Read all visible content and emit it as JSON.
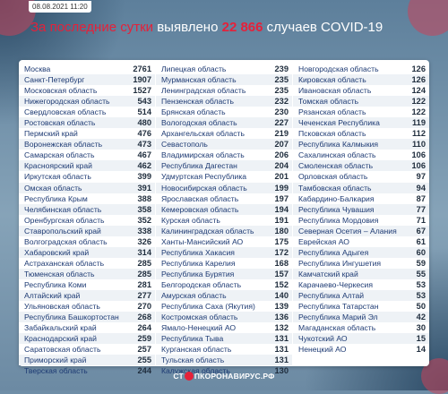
{
  "header": {
    "date": "08.08.2021 11:20",
    "title_part1": "За последние сутки",
    "title_part2": " выявлено ",
    "title_number": "22 866",
    "title_part3": " случаев COVID-19"
  },
  "footer": {
    "text_pre": "СТ",
    "text_post": "ПКОРОНАВИРУС.РФ"
  },
  "columns": [
    [
      {
        "name": "Москва",
        "value": "2761"
      },
      {
        "name": "Санкт-Петербург",
        "value": "1907"
      },
      {
        "name": "Московская область",
        "value": "1527"
      },
      {
        "name": "Нижегородская область",
        "value": "543"
      },
      {
        "name": "Свердловская область",
        "value": "514"
      },
      {
        "name": "Ростовская область",
        "value": "480"
      },
      {
        "name": "Пермский край",
        "value": "476"
      },
      {
        "name": "Воронежская область",
        "value": "473"
      },
      {
        "name": "Самарская область",
        "value": "467"
      },
      {
        "name": "Красноярский край",
        "value": "462"
      },
      {
        "name": "Иркутская область",
        "value": "399"
      },
      {
        "name": "Омская область",
        "value": "391"
      },
      {
        "name": "Республика Крым",
        "value": "388"
      },
      {
        "name": "Челябинская область",
        "value": "358"
      },
      {
        "name": "Оренбургская область",
        "value": "352"
      },
      {
        "name": "Ставропольский край",
        "value": "338"
      },
      {
        "name": "Волгоградская область",
        "value": "326"
      },
      {
        "name": "Хабаровский край",
        "value": "314"
      },
      {
        "name": "Астраханская область",
        "value": "285"
      },
      {
        "name": "Тюменская область",
        "value": "285"
      },
      {
        "name": "Республика Коми",
        "value": "281"
      },
      {
        "name": "Алтайский край",
        "value": "277"
      },
      {
        "name": "Ульяновская область",
        "value": "270"
      },
      {
        "name": "Республика Башкортостан",
        "value": "268"
      },
      {
        "name": "Забайкальский край",
        "value": "264"
      },
      {
        "name": "Краснодарский край",
        "value": "259"
      },
      {
        "name": "Саратовская область",
        "value": "257"
      },
      {
        "name": "Приморский край",
        "value": "255"
      },
      {
        "name": "Тверская область",
        "value": "244"
      }
    ],
    [
      {
        "name": "Липецкая область",
        "value": "239"
      },
      {
        "name": "Мурманская область",
        "value": "235"
      },
      {
        "name": "Ленинградская область",
        "value": "235"
      },
      {
        "name": "Пензенская область",
        "value": "232"
      },
      {
        "name": "Брянская область",
        "value": "230"
      },
      {
        "name": "Вологодская область",
        "value": "227"
      },
      {
        "name": "Архангельская область",
        "value": "219"
      },
      {
        "name": "Севастополь",
        "value": "207"
      },
      {
        "name": "Владимирская область",
        "value": "206"
      },
      {
        "name": "Республика Дагестан",
        "value": "204"
      },
      {
        "name": "Удмуртская Республика",
        "value": "201"
      },
      {
        "name": "Новосибирская область",
        "value": "199"
      },
      {
        "name": "Ярославская область",
        "value": "197"
      },
      {
        "name": "Кемеровская область",
        "value": "194"
      },
      {
        "name": "Курская область",
        "value": "191"
      },
      {
        "name": "Калининградская область",
        "value": "180"
      },
      {
        "name": "Ханты-Мансийский АО",
        "value": "175"
      },
      {
        "name": "Республика Хакасия",
        "value": "172"
      },
      {
        "name": "Республика Карелия",
        "value": "168"
      },
      {
        "name": "Республика Бурятия",
        "value": "157"
      },
      {
        "name": "Белгородская область",
        "value": "152"
      },
      {
        "name": "Амурская область",
        "value": "140"
      },
      {
        "name": "Республика Саха (Якутия)",
        "value": "139"
      },
      {
        "name": "Костромская область",
        "value": "136"
      },
      {
        "name": "Ямало-Ненецкий АО",
        "value": "132"
      },
      {
        "name": "Республика Тыва",
        "value": "131"
      },
      {
        "name": "Курганская область",
        "value": "131"
      },
      {
        "name": "Тульская область",
        "value": "131"
      },
      {
        "name": "Калужская область",
        "value": "130"
      }
    ],
    [
      {
        "name": "Новгородская область",
        "value": "126"
      },
      {
        "name": "Кировская область",
        "value": "126"
      },
      {
        "name": "Ивановская область",
        "value": "124"
      },
      {
        "name": "Томская область",
        "value": "122"
      },
      {
        "name": "Рязанская область",
        "value": "122"
      },
      {
        "name": "Чеченская Республика",
        "value": "119"
      },
      {
        "name": "Псковская область",
        "value": "112"
      },
      {
        "name": "Республика Калмыкия",
        "value": "110"
      },
      {
        "name": "Сахалинская область",
        "value": "106"
      },
      {
        "name": "Смоленская область",
        "value": "106"
      },
      {
        "name": "Орловская область",
        "value": "97"
      },
      {
        "name": "Тамбовская область",
        "value": "94"
      },
      {
        "name": "Кабардино-Балкария",
        "value": "87"
      },
      {
        "name": "Республика Чувашия",
        "value": "77"
      },
      {
        "name": "Республика Мордовия",
        "value": "71"
      },
      {
        "name": "Северная Осетия – Алания",
        "value": "67"
      },
      {
        "name": "Еврейская АО",
        "value": "61"
      },
      {
        "name": "Республика Адыгея",
        "value": "60"
      },
      {
        "name": "Республика Ингушетия",
        "value": "59"
      },
      {
        "name": "Камчатский край",
        "value": "55"
      },
      {
        "name": "Карачаево-Черкесия",
        "value": "53"
      },
      {
        "name": "Республика Алтай",
        "value": "53"
      },
      {
        "name": "Республика Татарстан",
        "value": "50"
      },
      {
        "name": "Республика Марий Эл",
        "value": "42"
      },
      {
        "name": "Магаданская область",
        "value": "30"
      },
      {
        "name": "Чукотский АО",
        "value": "15"
      },
      {
        "name": "Ненецкий АО",
        "value": "14"
      }
    ]
  ]
}
